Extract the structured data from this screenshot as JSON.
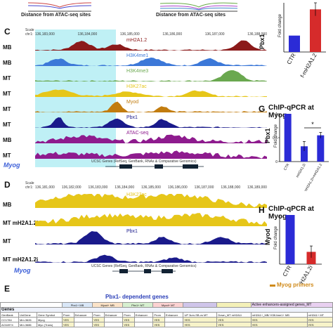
{
  "panel_top": {
    "xlabel_left": "Distance from ATAC-seq sites",
    "xlabel_right": "Distance from ATAC-seq sites"
  },
  "panel_c": {
    "letter": "C",
    "scale_label": "Scale",
    "chr_label": "chr1:",
    "gene_label": "Myog",
    "ucsc_caption": "UCSC Genes (RefSeq, GenBank, RNAs & Comparative Genomics)",
    "coords": [
      "136,183,000",
      "136,184,000",
      "136,185,000",
      "136,186,000",
      "136,187,000",
      "136,188,000"
    ],
    "tracks": [
      {
        "sample": "MB",
        "name": "mH2A1.2",
        "color": "#8b1a1a"
      },
      {
        "sample": "MB",
        "name": "H3K4me1",
        "color": "#3c78d8"
      },
      {
        "sample": "MT",
        "name": "H3K4me3",
        "color": "#6aa84f"
      },
      {
        "sample": "MT",
        "name": "H3K27ac",
        "color": "#e6c619"
      },
      {
        "sample": "MT",
        "name": "Myod",
        "color": "#c27c0e"
      },
      {
        "sample": "MT",
        "name": "Pbx1",
        "color": "#1a1a8b"
      },
      {
        "sample": "MB",
        "name": "ATAC-seq",
        "color": "#8e1b8e"
      },
      {
        "sample": "MT",
        "name": "",
        "color": "#8e1b8e"
      }
    ]
  },
  "panel_d": {
    "letter": "D",
    "scale_label": "Scale",
    "chr_label": "chr1:",
    "gene_label": "Myog",
    "ucsc_caption": "UCSC Genes (RefSeq, GenBank, RNAs & Comparative Genomics)",
    "coords": [
      "136,181,000",
      "136,182,000",
      "136,183,000",
      "136,184,000",
      "136,185,000",
      "136,186,000",
      "136,187,000",
      "136,188,000",
      "136,189,000"
    ],
    "tracks": [
      {
        "sample": "MB",
        "name": "H3K27ac",
        "color": "#e6c619"
      },
      {
        "sample": "MT mH2A1.2i",
        "name": "",
        "color": "#e6c619"
      },
      {
        "sample": "MT",
        "name": "Pbx1",
        "color": "#1a1a8b"
      },
      {
        "sample": "MT mH2A1.2i",
        "name": "",
        "color": "#1a1a8b"
      }
    ]
  },
  "panel_e": {
    "letter": "E",
    "banner": "Pbx1- dependent genes",
    "header_groups": [
      "Pbx1+ MB",
      "Myod+ MB",
      "Pbx1+ MT",
      "Myod+ MT",
      "",
      "",
      "Active enhancers-assigned genes_MT"
    ],
    "genes_label": "Genes",
    "subheaders": [
      "GenBank",
      "UniGene",
      "Gene Symbol",
      "Prom",
      "Enhancer",
      "Prom",
      "Enhancer",
      "Prom",
      "Enhancer",
      "Prom",
      "Enhancer",
      "UP 3um-SB-vs MT",
      "Down_MT mH2A1i",
      "mH2A1+_MB/ H3K4me1+ MB",
      "mH2A1+ MT"
    ],
    "rows": [
      [
        "CC1784",
        "Mm.3626",
        "Myog",
        "YES",
        "",
        "YES",
        "",
        "YES",
        "",
        "YES",
        "",
        "YES",
        "YES",
        "YES",
        "YES"
      ],
      [
        "AC64974",
        "Mm.3686",
        "Myo (Trans)",
        "YES",
        "",
        "YES",
        "",
        "YES",
        "",
        "YES",
        "",
        "YES",
        "YES",
        "YES",
        "YES"
      ]
    ]
  },
  "chart_f": {
    "ylabel": "Pbx1",
    "axis_title": "Fold change",
    "categories": [
      "CTR",
      "f-mH2A1.2"
    ]
  },
  "chart_g": {
    "letter": "G",
    "title": "ChIP-qPCR at Myog",
    "ylabel": "Pbx1",
    "axis_title": "Fold change",
    "significance": "*",
    "categories": [
      "CTR",
      "mH2A1.2i",
      "mH2A1.2i+mH2A1.2"
    ]
  },
  "chart_h": {
    "letter": "H",
    "title": "ChIP-qPCR at Myog",
    "ylabel": "Myod",
    "axis_title": "Fold change",
    "categories": [
      "CTR",
      "mH2A1.2i"
    ],
    "primer_label": "Myog primers"
  },
  "chart_data": [
    {
      "type": "bar",
      "categories": [
        "CTR",
        "f-mH2A1.2"
      ],
      "values": [
        1.0,
        2.6
      ],
      "errors": [
        0.0,
        0.4
      ],
      "colors": [
        "#2b2bd6",
        "#d62b2b"
      ],
      "xlabel": "",
      "ylabel": "Fold change",
      "title": "",
      "ylim": [
        0,
        3
      ]
    },
    {
      "type": "bar",
      "categories": [
        "CTR",
        "mH2A1.2i",
        "mH2A1.2i+mH2A1.2"
      ],
      "values": [
        1.0,
        0.32,
        0.55
      ],
      "errors": [
        0.0,
        0.1,
        0.06
      ],
      "colors": [
        "#2b2bd6",
        "#2b2bd6",
        "#2b2bd6"
      ],
      "xlabel": "",
      "ylabel": "Fold change",
      "title": "ChIP-qPCR at Myog",
      "ylim": [
        0,
        1
      ]
    },
    {
      "type": "bar",
      "categories": [
        "CTR",
        "mH2A1.2i"
      ],
      "values": [
        1.0,
        0.25
      ],
      "errors": [
        0.0,
        0.12
      ],
      "colors": [
        "#2b2bd6",
        "#d62b2b"
      ],
      "xlabel": "",
      "ylabel": "Fold change",
      "title": "ChIP-qPCR at Myog",
      "ylim": [
        0,
        1
      ]
    }
  ]
}
